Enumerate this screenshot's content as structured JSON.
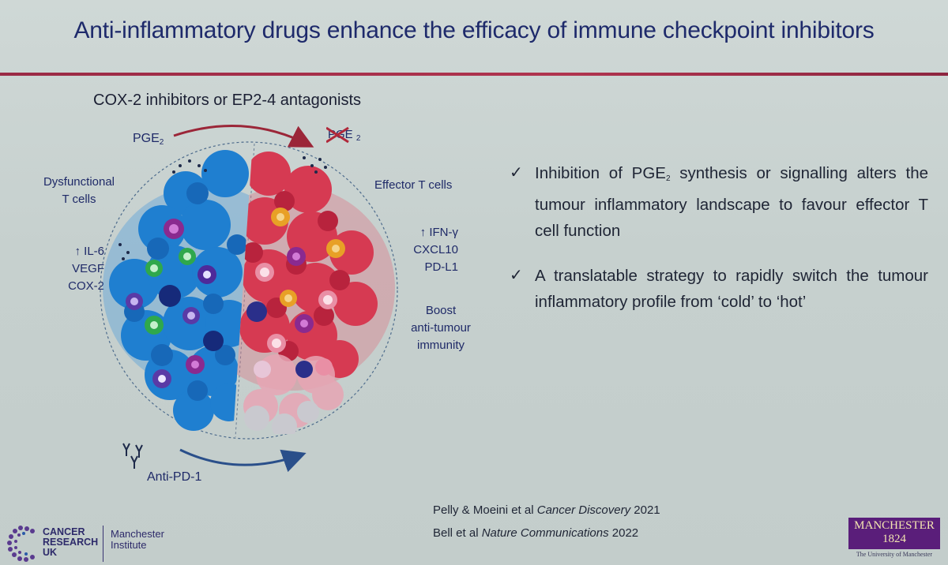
{
  "slide": {
    "title": "Anti-inflammatory drugs enhance the efficacy of immune checkpoint inhibitors",
    "accent_color": "#a32f4a",
    "title_color": "#1e2a6b"
  },
  "diagram": {
    "heading": "COX-2 inhibitors or EP2-4 antagonists",
    "pge_top": "PGE",
    "pge_top_sub": "2",
    "pge_struck": "PGE",
    "pge_struck_sub": "2",
    "left_labels": {
      "dysfunctional": [
        "Dysfunctional",
        "T cells"
      ],
      "markers": [
        "↑ IL-6",
        "VEGF",
        "COX-2"
      ]
    },
    "right_labels": {
      "effector": "Effector T cells",
      "markers": [
        "↑ IFN-γ",
        "CXCL10",
        "PD-L1"
      ],
      "boost": [
        "Boost",
        "anti-tumour",
        "immunity"
      ]
    },
    "bottom_label": "Anti-PD-1",
    "colors": {
      "cold": "#1f7fd0",
      "hot": "#d63a52",
      "arrow_top": "#9b2638",
      "arrow_bottom": "#2a4f8a"
    }
  },
  "bullets": [
    {
      "icon": "checkmark-icon",
      "parts": [
        "Inhibition of PGE",
        "2",
        " synthesis or signalling alters the tumour inflammatory landscape to favour effector T cell function"
      ]
    },
    {
      "icon": "checkmark-icon",
      "text": "A translatable strategy to rapidly switch the tumour inflammatory profile from ‘cold’ to ‘hot’"
    }
  ],
  "references": [
    {
      "authors": "Pelly & Moeini et al ",
      "journal": "Cancer Discovery",
      "year": " 2021"
    },
    {
      "authors": "Bell et al ",
      "journal": "Nature Communications",
      "year": " 2022"
    }
  ],
  "logos": {
    "cruk": [
      "CANCER",
      "RESEARCH",
      "UK"
    ],
    "institute": [
      "Manchester",
      "Institute"
    ],
    "uom": [
      "MANCHESTER",
      "1824"
    ],
    "uom_sub": "The University of Manchester"
  }
}
